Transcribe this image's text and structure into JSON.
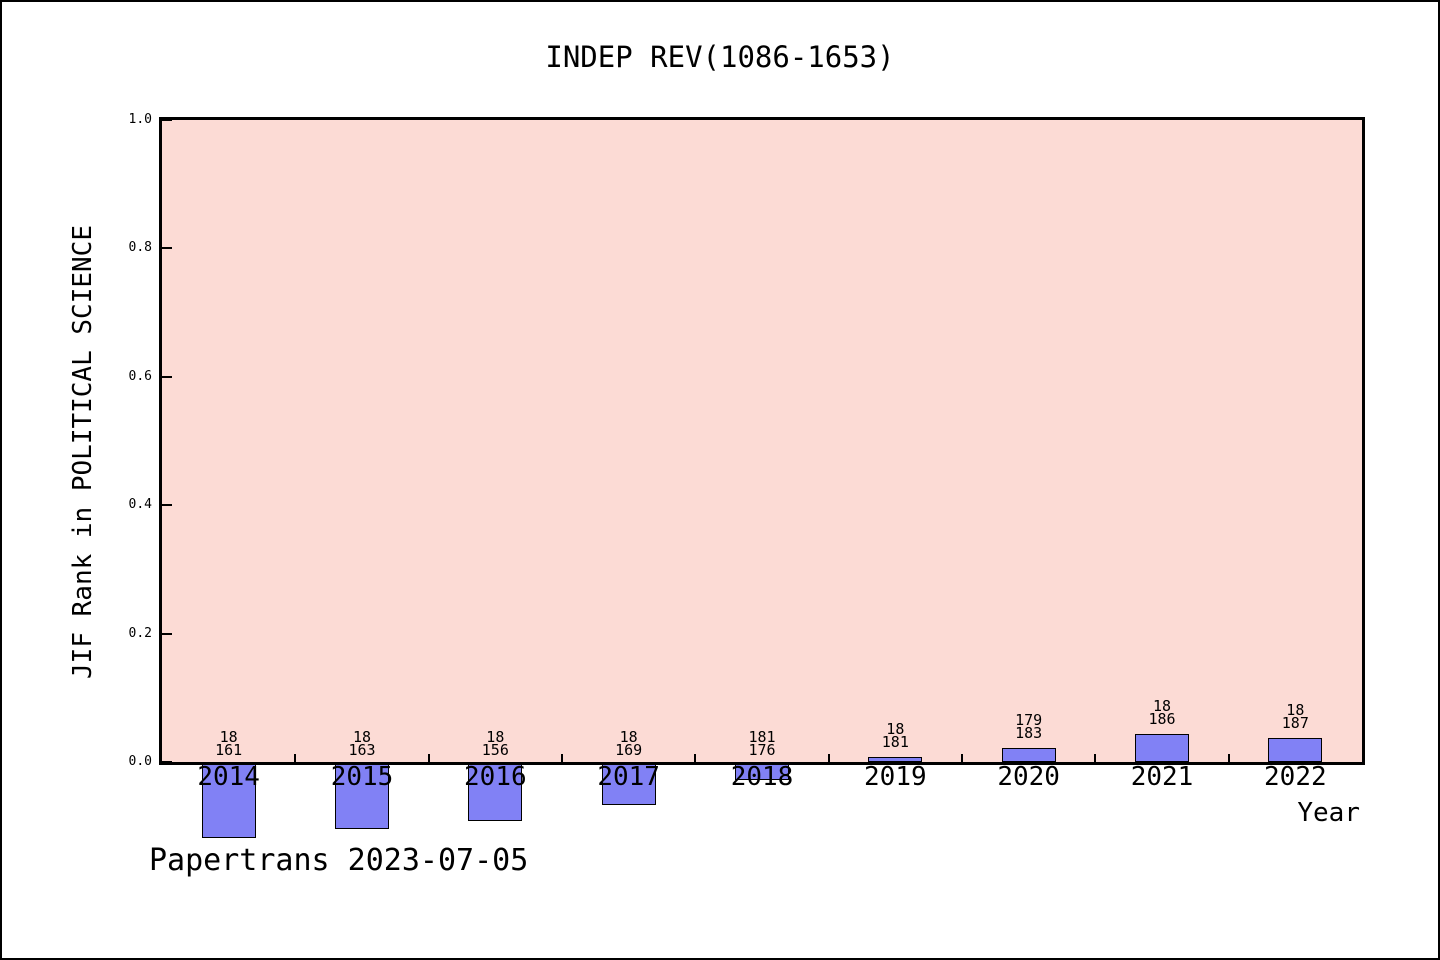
{
  "watermark": "Papertrans 2023-07-05",
  "chart_data": {
    "type": "bar",
    "title": "INDEP REV(1086-1653)",
    "xlabel": "Year",
    "ylabel": "JIF Rank in POLITICAL SCIENCE",
    "ylim": [
      0.0,
      1.0
    ],
    "grid": false,
    "legend_position": "none",
    "y_ticks": [
      {
        "value": 0.0,
        "label": "0.0"
      },
      {
        "value": 0.2,
        "label": "0.2"
      },
      {
        "value": 0.4,
        "label": "0.4"
      },
      {
        "value": 0.6,
        "label": "0.6"
      },
      {
        "value": 0.8,
        "label": "0.8"
      },
      {
        "value": 1.0,
        "label": "1.0"
      }
    ],
    "categories": [
      "2014",
      "2015",
      "2016",
      "2017",
      "2018",
      "2019",
      "2020",
      "2021",
      "2022"
    ],
    "values": [
      -0.118,
      -0.104,
      -0.092,
      -0.067,
      -0.028,
      0.008,
      0.022,
      0.044,
      0.037
    ],
    "bar_labels": [
      [
        "18",
        "161"
      ],
      [
        "18",
        "163"
      ],
      [
        "18",
        "156"
      ],
      [
        "18",
        "169"
      ],
      [
        "181",
        "176"
      ],
      [
        "18",
        "181"
      ],
      [
        "179",
        "183"
      ],
      [
        "18",
        "186"
      ],
      [
        "18",
        "187"
      ]
    ],
    "colors": {
      "plot_background": "#fcdbd5",
      "bar_fill": "#8181f5",
      "bar_edge": "#000000",
      "axis": "#000000",
      "text": "#000000",
      "figure_background": "#ffffff"
    }
  }
}
